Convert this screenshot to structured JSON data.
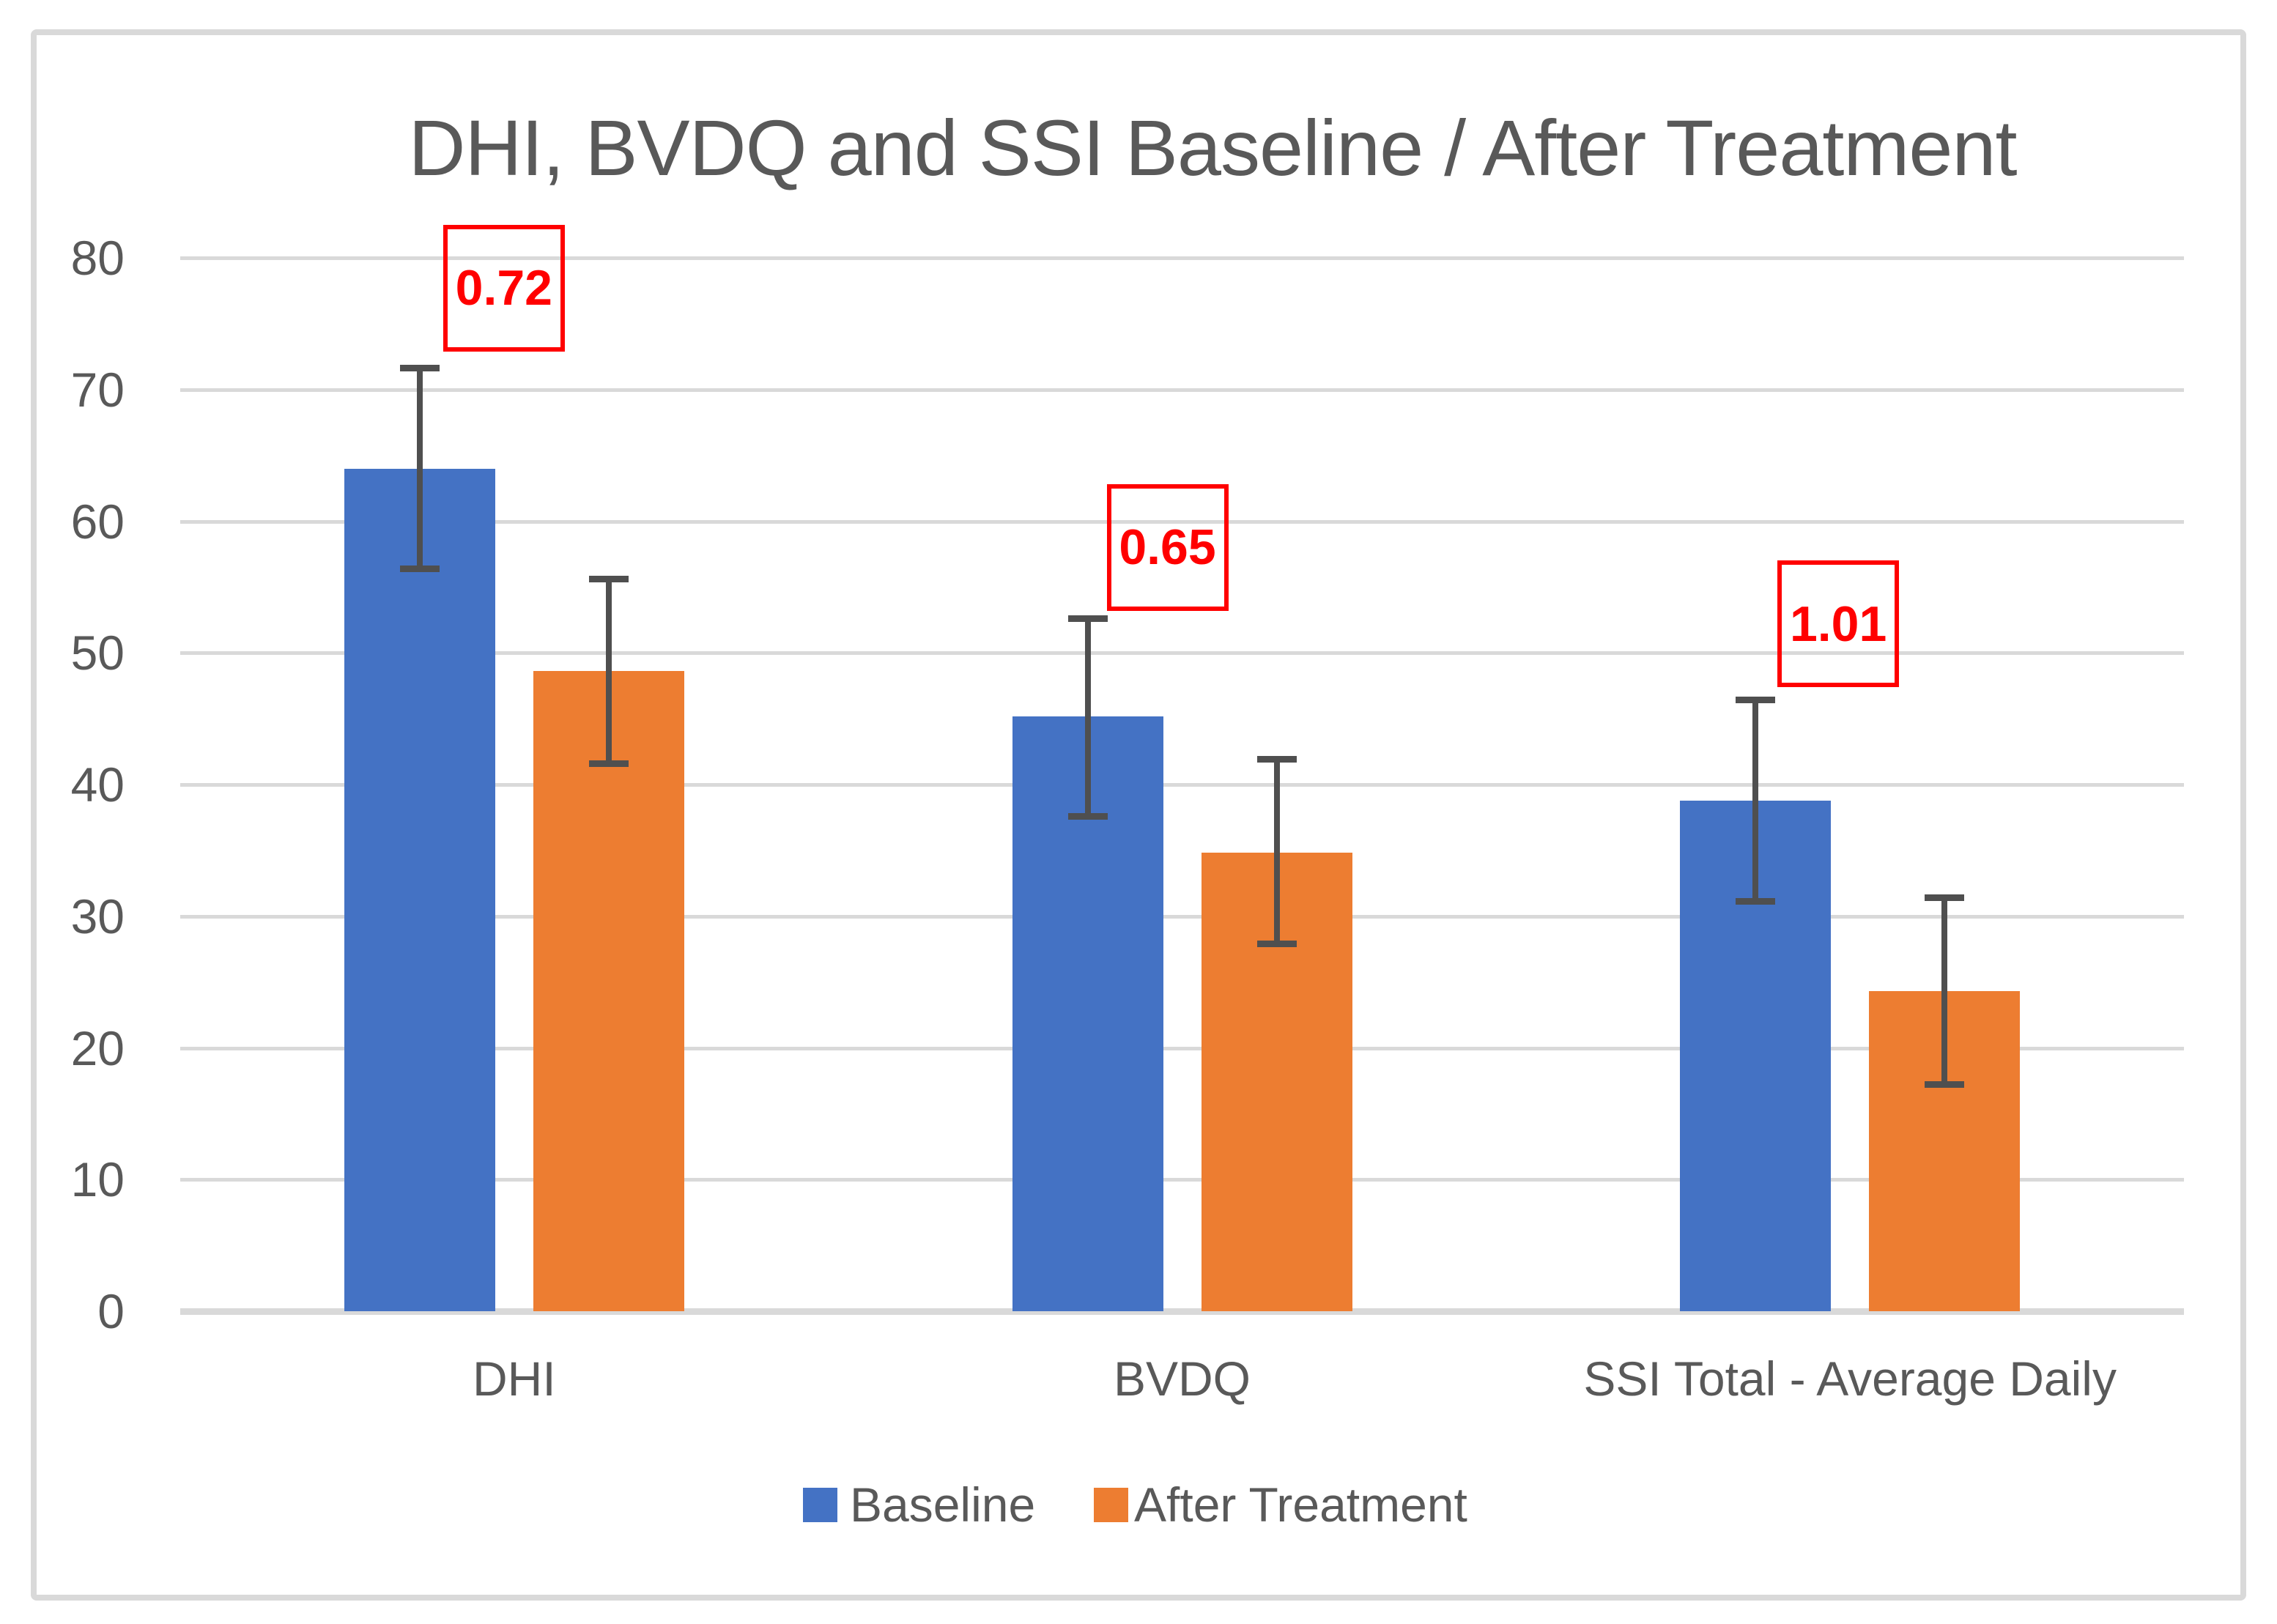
{
  "chart_data": {
    "type": "bar",
    "title": "DHI, BVDQ and SSI Baseline / After Treatment",
    "categories": [
      "DHI",
      "BVDQ",
      "SSI Total - Average Daily"
    ],
    "series": [
      {
        "name": "Baseline",
        "color": "#4472C4",
        "values": [
          64.0,
          45.2,
          38.8
        ],
        "error_low": [
          56.4,
          37.6,
          31.1
        ],
        "error_high": [
          71.6,
          52.6,
          46.4
        ]
      },
      {
        "name": "After Treatment",
        "color": "#ED7D31",
        "values": [
          48.6,
          34.8,
          24.3
        ],
        "error_low": [
          41.6,
          27.9,
          17.2
        ],
        "error_high": [
          55.6,
          41.9,
          31.4
        ]
      }
    ],
    "annotations": [
      {
        "label": "0.72",
        "category": "DHI",
        "value_top": 82.5,
        "value_bottom": 72.9,
        "x_offset": -20
      },
      {
        "label": "0.65",
        "category": "BVDQ",
        "value_top": 62.8,
        "value_bottom": 53.2,
        "x_offset": -26
      },
      {
        "label": "1.01",
        "category": "SSI Total - Average Daily",
        "value_top": 57.0,
        "value_bottom": 47.4,
        "x_offset": -22
      }
    ],
    "ylim": [
      0,
      80
    ],
    "yticks": [
      0,
      10,
      20,
      30,
      40,
      50,
      60,
      70,
      80
    ],
    "xlabel": "",
    "ylabel": "",
    "grid": true,
    "legend_position": "bottom"
  },
  "colors": {
    "baseline": "#4472C4",
    "after_treatment": "#ED7D31",
    "annotation": "#FF0000",
    "gridline": "#D9D9D9",
    "axis_text": "#595959",
    "error_bar": "#4F4F4F",
    "border": "#D9D9D9",
    "background": "#FFFFFF"
  }
}
